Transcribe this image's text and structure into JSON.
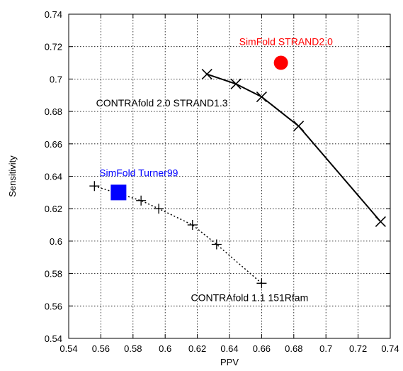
{
  "chart_data": {
    "type": "scatter",
    "xlabel": "PPV",
    "ylabel": "Sensitivity",
    "xlim": [
      0.54,
      0.74
    ],
    "ylim": [
      0.54,
      0.74
    ],
    "xticks": [
      0.54,
      0.56,
      0.58,
      0.6,
      0.62,
      0.64,
      0.66,
      0.68,
      0.7,
      0.72,
      0.74
    ],
    "yticks": [
      0.54,
      0.56,
      0.58,
      0.6,
      0.62,
      0.64,
      0.66,
      0.68,
      0.7,
      0.72,
      0.74
    ],
    "xtick_labels": [
      "0.54",
      "0.56",
      "0.58",
      "0.6",
      "0.62",
      "0.64",
      "0.66",
      "0.68",
      "0.7",
      "0.72",
      "0.74"
    ],
    "ytick_labels": [
      "0.54",
      "0.56",
      "0.58",
      "0.6",
      "0.62",
      "0.64",
      "0.66",
      "0.68",
      "0.7",
      "0.72",
      "0.74"
    ],
    "grid": true,
    "series": [
      {
        "name": "CONTRAfold 2.0 STRAND1.3",
        "marker": "x",
        "line": "solid",
        "color": "#000000",
        "x": [
          0.626,
          0.644,
          0.66,
          0.683,
          0.734
        ],
        "y": [
          0.703,
          0.697,
          0.689,
          0.671,
          0.612
        ]
      },
      {
        "name": "CONTRAfold 1.1 151Rfam",
        "marker": "plus",
        "line": "dotted",
        "color": "#000000",
        "x": [
          0.556,
          0.585,
          0.596,
          0.617,
          0.632,
          0.66
        ],
        "y": [
          0.634,
          0.625,
          0.62,
          0.61,
          0.598,
          0.574
        ]
      },
      {
        "name": "SimFold STRAND2.0",
        "marker": "circle",
        "line": "none",
        "color": "#ff0000",
        "x": [
          0.672
        ],
        "y": [
          0.71
        ]
      },
      {
        "name": "SimFold Turner99",
        "marker": "square",
        "line": "none",
        "color": "#0000ff",
        "x": [
          0.571
        ],
        "y": [
          0.63
        ]
      }
    ],
    "annotations": [
      {
        "text": "SimFold STRAND2.0",
        "color": "#ff0000",
        "x": 0.646,
        "y": 0.721
      },
      {
        "text": "CONTRAfold 2.0 STRAND1.3",
        "color": "#000000",
        "x": 0.557,
        "y": 0.683
      },
      {
        "text": "SimFold Turner99",
        "color": "#0000ff",
        "x": 0.559,
        "y": 0.64
      },
      {
        "text": "CONTRAfold 1.1 151Rfam",
        "color": "#000000",
        "x": 0.616,
        "y": 0.563
      }
    ]
  }
}
